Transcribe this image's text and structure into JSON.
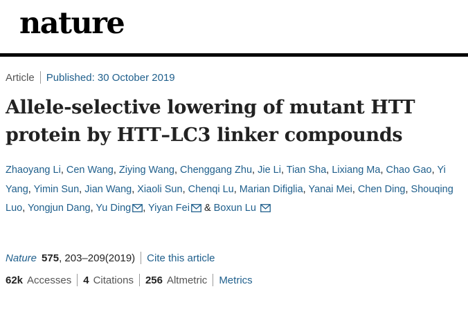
{
  "header": {
    "logo_text": "nature"
  },
  "article_meta": {
    "type_label": "Article",
    "published_text": "Published: 30 October 2019"
  },
  "title": {
    "line1": "Allele-selective lowering of mutant HTT",
    "line2": "protein by HTT–LC3 linker compounds"
  },
  "authors": [
    "Zhaoyang Li",
    "Cen Wang",
    "Ziying Wang",
    "Chenggang Zhu",
    "Jie Li",
    "Tian Sha",
    "Lixiang Ma",
    "Chao Gao",
    "Yi Yang",
    "Yimin Sun",
    "Jian Wang",
    "Xiaoli Sun",
    "Chenqi Lu",
    "Marian Difiglia",
    "Yanai Mei",
    "Chen Ding",
    "Shouqing Luo",
    "Yongjun Dang",
    "Yu Ding",
    "Yiyan Fei",
    "Boxun Lu"
  ],
  "author_separator": ",",
  "author_amp": "&",
  "citation": {
    "journal": "Nature",
    "volume": "575",
    "pages": ", 203–209(2019)",
    "cite_link": "Cite this article"
  },
  "metrics": {
    "accesses_count": "62k",
    "accesses_label": "Accesses",
    "citations_count": "4",
    "citations_label": "Citations",
    "altmetric_count": "256",
    "altmetric_label": "Altmetric",
    "metrics_link": "Metrics"
  },
  "icons": {
    "author_contact": "mail-icon"
  },
  "colors": {
    "link": "#1f5f8c",
    "rule": "#000000",
    "text": "#222222",
    "muted": "#555555"
  }
}
